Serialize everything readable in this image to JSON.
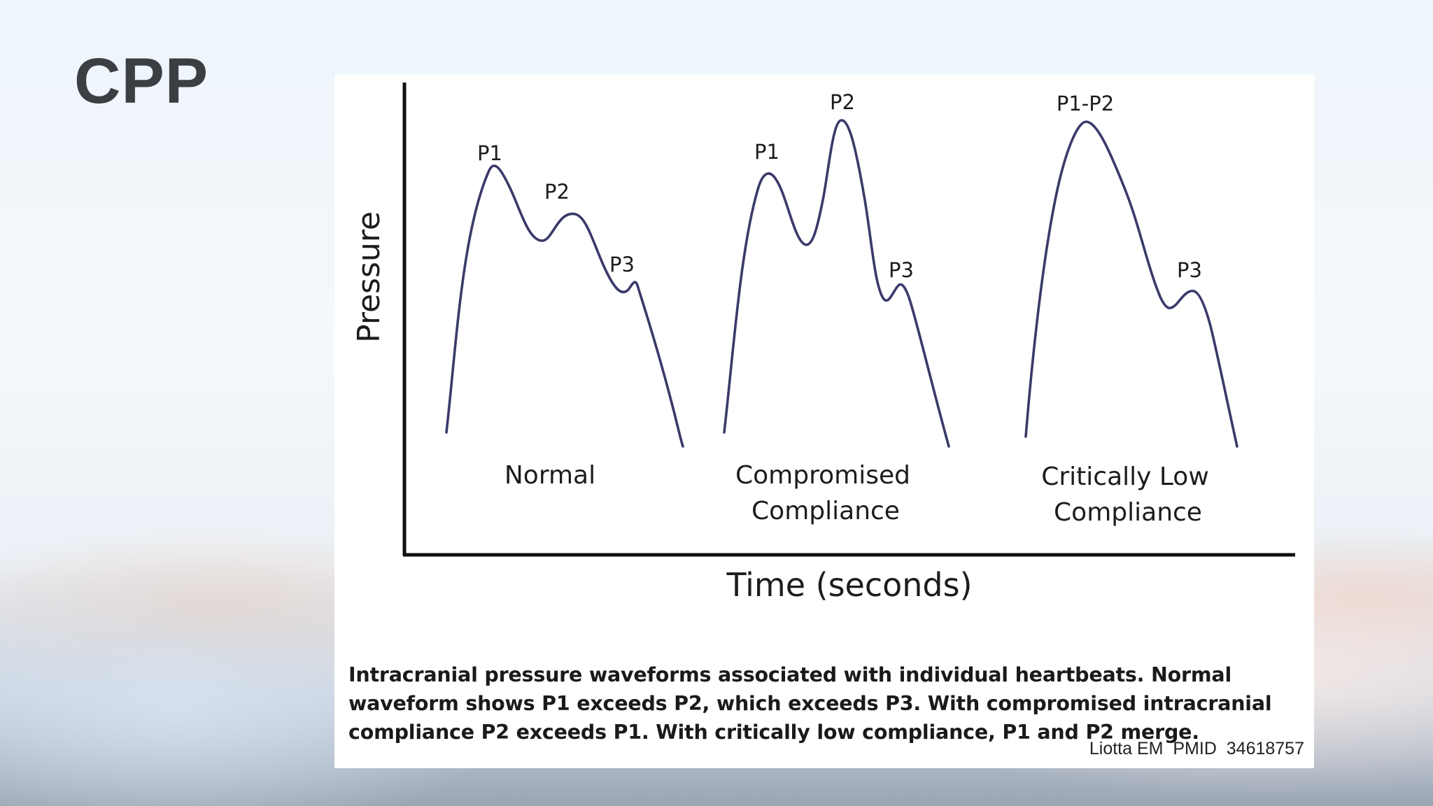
{
  "slide": {
    "title": "CPP"
  },
  "figure": {
    "y_axis_label": "Pressure",
    "x_axis_label": "Time (seconds)",
    "waveforms": [
      {
        "label_lines": [
          "Normal"
        ],
        "peaks": [
          "P1",
          "P2",
          "P3"
        ]
      },
      {
        "label_lines": [
          "Compromised",
          "Compliance"
        ],
        "peaks": [
          "P1",
          "P2",
          "P3"
        ]
      },
      {
        "label_lines": [
          "Critically Low",
          "Compliance"
        ],
        "peaks": [
          "P1-P2",
          "P3"
        ]
      }
    ],
    "caption": "Intracranial pressure waveforms associated with individual heartbeats. Normal waveform shows P1 exceeds P2, which exceeds P3. With compromised intracranial compliance P2 exceeds P1. With critically low compliance, P1 and P2 merge.",
    "citation": "Liotta EM  PMID  34618757",
    "line_color": "#3a3a6a"
  }
}
